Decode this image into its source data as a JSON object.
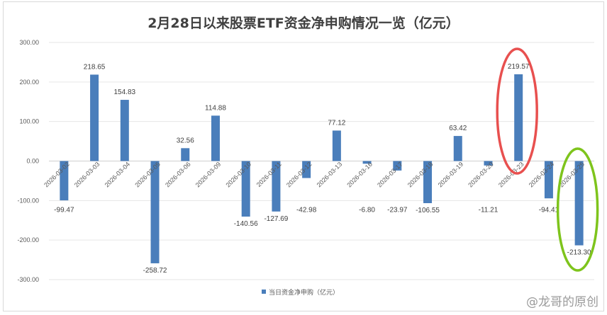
{
  "chart_data": {
    "type": "bar",
    "title": "2月28日以来股票ETF资金净申购情况一览（亿元）",
    "categories": [
      "2026-03-02",
      "2026-03-03",
      "2026-03-04",
      "2026-03-05",
      "2026-03-06",
      "2026-03-09",
      "2026-03-10",
      "2026-03-11",
      "2026-03-12",
      "2026-03-13",
      "2026-03-16",
      "2026-03-17",
      "2026-03-18",
      "2026-03-19",
      "2026-03-20",
      "2026-03-23",
      "2026-03-24",
      "2026-03-25"
    ],
    "series": [
      {
        "name": "当日资金净申购（亿元）",
        "values": [
          -99.47,
          218.65,
          154.83,
          -258.72,
          32.56,
          114.88,
          -140.56,
          -127.69,
          -42.98,
          77.12,
          -6.8,
          -23.97,
          -106.55,
          63.42,
          -11.21,
          219.57,
          -94.41,
          -213.3
        ],
        "color": "#4a7ebb"
      }
    ],
    "ylim": [
      -300,
      300
    ],
    "yticks": [
      "300.00",
      "200.00",
      "100.00",
      "0.00",
      "-100.00",
      "-200.00",
      "-300.00"
    ],
    "grid": true,
    "legend": "bottom",
    "annotations": [
      {
        "shape": "ellipse",
        "color": "#e8504f",
        "category": "2026-03-23"
      },
      {
        "shape": "ellipse",
        "color": "#7ec41c",
        "category": "2026-03-25"
      }
    ]
  },
  "watermark": "@龙哥的原创"
}
